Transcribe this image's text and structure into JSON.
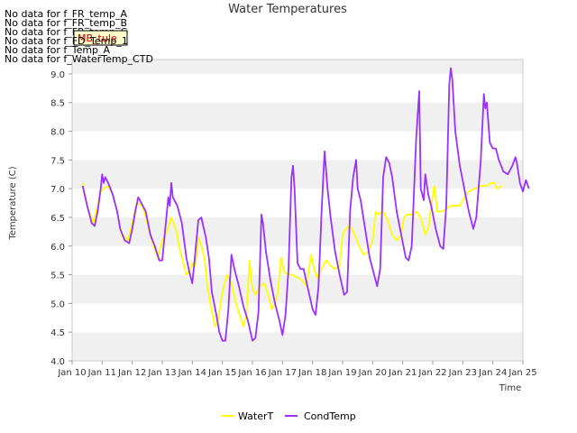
{
  "no_data_messages": [
    "No data for f_FR_temp_A",
    "No data for f_FR_temp_B",
    "No data for f_FR_temp_C",
    "No data for f_FD_Temp_1",
    "No data for f_Temp_A",
    "No data for f_WaterTemp_CTD"
  ],
  "tooltip_label": "MB_tule",
  "chart_data": {
    "type": "line",
    "title": "Water Temperatures",
    "xlabel": "Time",
    "ylabel": "Temperature (C)",
    "xlim": [
      10,
      25
    ],
    "ylim": [
      4.0,
      9.25
    ],
    "x_ticks": [
      10,
      11,
      12,
      13,
      14,
      15,
      16,
      17,
      18,
      19,
      20,
      21,
      22,
      23,
      24,
      25
    ],
    "x_tick_labels": [
      "Jan 10",
      "Jan 11",
      "Jan 12",
      "Jan 13",
      "Jan 14",
      "Jan 15",
      "Jan 16",
      "Jan 17",
      "Jan 18",
      "Jan 19",
      "Jan 20",
      "Jan 21",
      "Jan 22",
      "Jan 23",
      "Jan 24",
      "Jan 25"
    ],
    "y_ticks": [
      4.0,
      4.5,
      5.0,
      5.5,
      6.0,
      6.5,
      7.0,
      7.5,
      8.0,
      8.5,
      9.0
    ],
    "y_tick_labels": [
      "4.0",
      "4.5",
      "5.0",
      "5.5",
      "6.0",
      "6.5",
      "7.0",
      "7.5",
      "8.0",
      "8.5",
      "9.0"
    ],
    "grid": true,
    "legend_position": "bottom-center",
    "series": [
      {
        "name": "WaterT",
        "color": "#ffff00",
        "points": [
          [
            10.35,
            7.1
          ],
          [
            10.5,
            6.7
          ],
          [
            10.7,
            6.4
          ],
          [
            10.85,
            6.7
          ],
          [
            10.95,
            6.95
          ],
          [
            11.05,
            7.0
          ],
          [
            11.2,
            7.05
          ],
          [
            11.35,
            6.9
          ],
          [
            11.5,
            6.6
          ],
          [
            11.65,
            6.2
          ],
          [
            11.85,
            6.1
          ],
          [
            12.0,
            6.4
          ],
          [
            12.15,
            6.75
          ],
          [
            12.35,
            6.7
          ],
          [
            12.5,
            6.4
          ],
          [
            12.65,
            6.1
          ],
          [
            12.85,
            5.8
          ],
          [
            13.0,
            6.1
          ],
          [
            13.15,
            6.25
          ],
          [
            13.3,
            6.5
          ],
          [
            13.45,
            6.3
          ],
          [
            13.6,
            5.9
          ],
          [
            13.8,
            5.5
          ],
          [
            13.9,
            5.55
          ],
          [
            14.0,
            5.7
          ],
          [
            14.1,
            5.65
          ],
          [
            14.2,
            6.15
          ],
          [
            14.3,
            6.0
          ],
          [
            14.4,
            5.8
          ],
          [
            14.5,
            5.3
          ],
          [
            14.6,
            5.0
          ],
          [
            14.75,
            4.6
          ],
          [
            14.85,
            4.7
          ],
          [
            15.0,
            5.2
          ],
          [
            15.15,
            5.5
          ],
          [
            15.3,
            5.35
          ],
          [
            15.45,
            5.0
          ],
          [
            15.6,
            4.75
          ],
          [
            15.7,
            4.6
          ],
          [
            15.8,
            4.8
          ],
          [
            15.9,
            5.75
          ],
          [
            16.0,
            5.25
          ],
          [
            16.1,
            5.15
          ],
          [
            16.25,
            5.3
          ],
          [
            16.4,
            5.35
          ],
          [
            16.55,
            5.1
          ],
          [
            16.65,
            4.9
          ],
          [
            16.75,
            5.0
          ],
          [
            16.85,
            5.2
          ],
          [
            16.95,
            5.8
          ],
          [
            17.05,
            5.55
          ],
          [
            17.2,
            5.5
          ],
          [
            17.35,
            5.5
          ],
          [
            17.5,
            5.45
          ],
          [
            17.65,
            5.4
          ],
          [
            17.8,
            5.3
          ],
          [
            17.95,
            5.85
          ],
          [
            18.05,
            5.6
          ],
          [
            18.15,
            5.45
          ],
          [
            18.3,
            5.6
          ],
          [
            18.45,
            5.75
          ],
          [
            18.6,
            5.65
          ],
          [
            18.75,
            5.6
          ],
          [
            18.9,
            5.65
          ],
          [
            19.0,
            6.2
          ],
          [
            19.1,
            6.3
          ],
          [
            19.25,
            6.35
          ],
          [
            19.4,
            6.2
          ],
          [
            19.55,
            6.0
          ],
          [
            19.7,
            5.85
          ],
          [
            19.85,
            5.9
          ],
          [
            20.0,
            6.1
          ],
          [
            20.1,
            6.6
          ],
          [
            20.2,
            6.55
          ],
          [
            20.35,
            6.6
          ],
          [
            20.5,
            6.45
          ],
          [
            20.65,
            6.2
          ],
          [
            20.8,
            6.1
          ],
          [
            20.95,
            6.2
          ],
          [
            21.05,
            6.5
          ],
          [
            21.15,
            6.55
          ],
          [
            21.3,
            6.55
          ],
          [
            21.45,
            6.6
          ],
          [
            21.6,
            6.5
          ],
          [
            21.75,
            6.2
          ],
          [
            21.85,
            6.3
          ],
          [
            21.95,
            6.7
          ],
          [
            22.05,
            7.05
          ],
          [
            22.15,
            6.6
          ],
          [
            22.3,
            6.6
          ],
          [
            22.45,
            6.65
          ],
          [
            22.6,
            6.7
          ],
          [
            22.75,
            6.7
          ],
          [
            22.9,
            6.7
          ],
          [
            23.05,
            6.85
          ],
          [
            23.2,
            6.95
          ],
          [
            23.4,
            7.0
          ],
          [
            23.6,
            7.05
          ],
          [
            23.8,
            7.05
          ],
          [
            23.95,
            7.1
          ],
          [
            24.05,
            7.1
          ],
          [
            24.15,
            7.0
          ],
          [
            24.3,
            7.05
          ]
        ]
      },
      {
        "name": "CondTemp",
        "color": "#9b30ff",
        "points": [
          [
            10.35,
            7.05
          ],
          [
            10.5,
            6.7
          ],
          [
            10.65,
            6.4
          ],
          [
            10.75,
            6.35
          ],
          [
            10.85,
            6.6
          ],
          [
            10.95,
            7.0
          ],
          [
            11.0,
            7.25
          ],
          [
            11.05,
            7.1
          ],
          [
            11.1,
            7.2
          ],
          [
            11.2,
            7.1
          ],
          [
            11.35,
            6.9
          ],
          [
            11.5,
            6.6
          ],
          [
            11.6,
            6.3
          ],
          [
            11.75,
            6.1
          ],
          [
            11.9,
            6.05
          ],
          [
            12.0,
            6.3
          ],
          [
            12.1,
            6.6
          ],
          [
            12.2,
            6.85
          ],
          [
            12.3,
            6.75
          ],
          [
            12.45,
            6.6
          ],
          [
            12.6,
            6.2
          ],
          [
            12.75,
            6.0
          ],
          [
            12.9,
            5.75
          ],
          [
            13.0,
            5.75
          ],
          [
            13.1,
            6.3
          ],
          [
            13.2,
            6.85
          ],
          [
            13.25,
            6.7
          ],
          [
            13.3,
            7.1
          ],
          [
            13.35,
            6.85
          ],
          [
            13.5,
            6.7
          ],
          [
            13.65,
            6.4
          ],
          [
            13.8,
            5.8
          ],
          [
            13.9,
            5.55
          ],
          [
            14.0,
            5.35
          ],
          [
            14.1,
            5.9
          ],
          [
            14.2,
            6.45
          ],
          [
            14.3,
            6.5
          ],
          [
            14.45,
            6.15
          ],
          [
            14.55,
            5.8
          ],
          [
            14.65,
            5.2
          ],
          [
            14.8,
            4.8
          ],
          [
            14.9,
            4.5
          ],
          [
            15.0,
            4.35
          ],
          [
            15.1,
            4.35
          ],
          [
            15.2,
            4.9
          ],
          [
            15.3,
            5.85
          ],
          [
            15.4,
            5.6
          ],
          [
            15.55,
            5.3
          ],
          [
            15.7,
            4.95
          ],
          [
            15.85,
            4.7
          ],
          [
            16.0,
            4.35
          ],
          [
            16.1,
            4.4
          ],
          [
            16.2,
            4.85
          ],
          [
            16.3,
            6.55
          ],
          [
            16.35,
            6.4
          ],
          [
            16.45,
            5.9
          ],
          [
            16.6,
            5.4
          ],
          [
            16.75,
            5.0
          ],
          [
            16.9,
            4.7
          ],
          [
            17.0,
            4.45
          ],
          [
            17.1,
            4.8
          ],
          [
            17.2,
            5.6
          ],
          [
            17.3,
            7.2
          ],
          [
            17.35,
            7.4
          ],
          [
            17.4,
            7.0
          ],
          [
            17.5,
            5.7
          ],
          [
            17.6,
            5.6
          ],
          [
            17.7,
            5.6
          ],
          [
            17.85,
            5.25
          ],
          [
            18.0,
            4.9
          ],
          [
            18.1,
            4.8
          ],
          [
            18.2,
            5.3
          ],
          [
            18.3,
            6.6
          ],
          [
            18.4,
            7.65
          ],
          [
            18.5,
            7.0
          ],
          [
            18.6,
            6.5
          ],
          [
            18.75,
            5.9
          ],
          [
            18.9,
            5.5
          ],
          [
            19.05,
            5.15
          ],
          [
            19.15,
            5.2
          ],
          [
            19.25,
            6.6
          ],
          [
            19.35,
            7.2
          ],
          [
            19.45,
            7.5
          ],
          [
            19.5,
            7.0
          ],
          [
            19.6,
            6.8
          ],
          [
            19.75,
            6.3
          ],
          [
            19.9,
            5.8
          ],
          [
            20.05,
            5.5
          ],
          [
            20.15,
            5.3
          ],
          [
            20.25,
            5.6
          ],
          [
            20.35,
            7.2
          ],
          [
            20.45,
            7.55
          ],
          [
            20.55,
            7.45
          ],
          [
            20.65,
            7.2
          ],
          [
            20.8,
            6.6
          ],
          [
            20.95,
            6.2
          ],
          [
            21.1,
            5.8
          ],
          [
            21.2,
            5.75
          ],
          [
            21.3,
            6.0
          ],
          [
            21.45,
            7.9
          ],
          [
            21.55,
            8.7
          ],
          [
            21.6,
            7.0
          ],
          [
            21.7,
            6.8
          ],
          [
            21.75,
            7.25
          ],
          [
            21.85,
            6.9
          ],
          [
            21.95,
            6.7
          ],
          [
            22.1,
            6.3
          ],
          [
            22.25,
            6.0
          ],
          [
            22.35,
            5.95
          ],
          [
            22.45,
            6.7
          ],
          [
            22.55,
            8.8
          ],
          [
            22.6,
            9.1
          ],
          [
            22.65,
            8.9
          ],
          [
            22.75,
            8.0
          ],
          [
            22.9,
            7.4
          ],
          [
            23.05,
            7.0
          ],
          [
            23.2,
            6.6
          ],
          [
            23.35,
            6.3
          ],
          [
            23.45,
            6.5
          ],
          [
            23.6,
            7.5
          ],
          [
            23.7,
            8.65
          ],
          [
            23.75,
            8.4
          ],
          [
            23.8,
            8.5
          ],
          [
            23.9,
            7.8
          ],
          [
            24.0,
            7.7
          ],
          [
            24.1,
            7.7
          ],
          [
            24.2,
            7.5
          ],
          [
            24.35,
            7.3
          ],
          [
            24.5,
            7.25
          ],
          [
            24.65,
            7.4
          ],
          [
            24.75,
            7.55
          ],
          [
            24.8,
            7.45
          ],
          [
            24.9,
            7.1
          ],
          [
            25.0,
            6.95
          ],
          [
            25.1,
            7.15
          ],
          [
            25.2,
            7.0
          ]
        ]
      }
    ]
  }
}
